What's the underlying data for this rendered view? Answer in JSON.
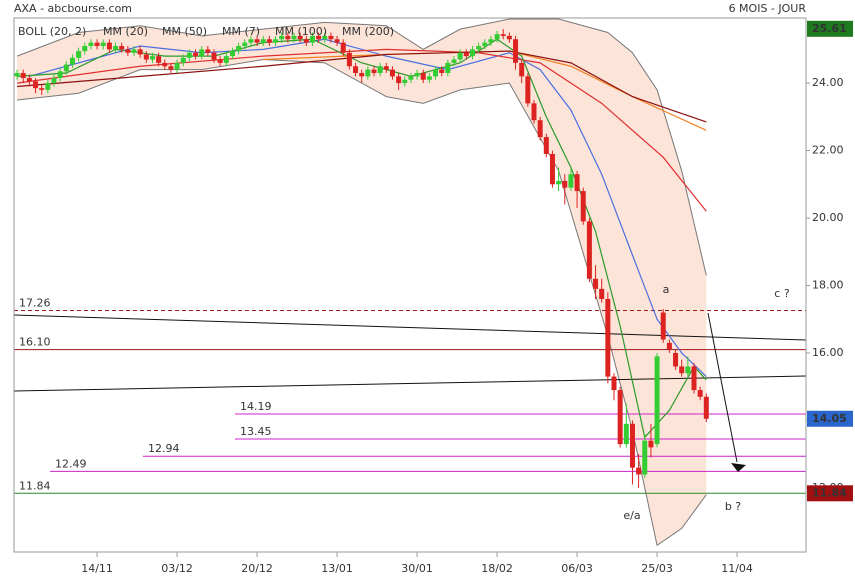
{
  "chart_data": {
    "type": "candlestick",
    "title": "AXA - abcbourse.com",
    "subtitle": "6 MOIS - JOUR",
    "up_color": "#33cc33",
    "down_color": "#dd2222",
    "x": [
      0,
      1,
      2,
      3,
      4,
      5,
      6,
      7,
      8,
      9,
      10,
      11,
      12,
      13,
      14,
      15,
      16,
      17,
      18,
      19,
      20,
      21,
      22,
      23,
      24,
      25,
      26,
      27,
      28,
      29,
      30,
      31,
      32,
      33,
      34,
      35,
      36,
      37,
      38,
      39,
      40,
      41,
      42,
      43,
      44,
      45,
      46,
      47,
      48,
      49,
      50,
      51,
      52,
      53,
      54,
      55,
      56,
      57,
      58,
      59,
      60,
      61,
      62,
      63,
      64,
      65,
      66,
      67,
      68,
      69,
      70,
      71,
      72,
      73,
      74,
      75,
      76,
      77,
      78,
      79,
      80,
      81,
      82,
      83,
      84,
      85,
      86,
      87,
      88,
      89,
      90,
      91,
      92,
      93,
      94,
      95,
      96,
      97,
      98,
      99,
      100,
      101,
      102,
      103,
      104,
      105,
      106,
      107,
      108,
      109,
      110,
      111,
      112
    ],
    "open": [
      24.2,
      24.3,
      24.15,
      24.05,
      23.85,
      23.8,
      24.0,
      24.15,
      24.35,
      24.55,
      24.75,
      24.95,
      25.1,
      25.2,
      25.1,
      25.2,
      25.0,
      25.1,
      25.0,
      24.9,
      25.0,
      24.85,
      24.7,
      24.8,
      24.6,
      24.5,
      24.4,
      24.6,
      24.75,
      24.9,
      24.8,
      25.0,
      24.9,
      24.7,
      24.6,
      24.8,
      24.95,
      25.1,
      25.2,
      25.3,
      25.2,
      25.3,
      25.2,
      25.3,
      25.4,
      25.3,
      25.4,
      25.3,
      25.2,
      25.4,
      25.3,
      25.4,
      25.3,
      25.2,
      24.9,
      24.5,
      24.3,
      24.2,
      24.4,
      24.3,
      24.5,
      24.4,
      24.2,
      24.0,
      24.1,
      24.2,
      24.3,
      24.1,
      24.2,
      24.4,
      24.3,
      24.6,
      24.7,
      24.9,
      24.8,
      25.0,
      25.1,
      25.2,
      25.3,
      25.45,
      25.4,
      25.3,
      24.6,
      24.2,
      23.4,
      22.9,
      22.4,
      21.9,
      21.0,
      21.1,
      20.9,
      21.3,
      20.8,
      19.9,
      18.2,
      17.9,
      17.6,
      15.3,
      14.9,
      13.3,
      13.9,
      12.6,
      12.4,
      13.4,
      13.3,
      17.2,
      16.3,
      16.0,
      15.6,
      15.4,
      15.6,
      14.9,
      14.7
    ],
    "high": [
      24.4,
      24.4,
      24.25,
      24.15,
      23.95,
      24.1,
      24.25,
      24.45,
      24.65,
      24.85,
      25.05,
      25.2,
      25.3,
      25.3,
      25.3,
      25.3,
      25.2,
      25.2,
      25.1,
      25.1,
      25.1,
      24.95,
      24.9,
      24.9,
      24.7,
      24.6,
      24.7,
      24.85,
      25.0,
      25.0,
      25.1,
      25.1,
      25.0,
      24.8,
      24.9,
      25.05,
      25.2,
      25.3,
      25.4,
      25.4,
      25.4,
      25.4,
      25.4,
      25.5,
      25.5,
      25.5,
      25.5,
      25.4,
      25.5,
      25.5,
      25.5,
      25.5,
      25.4,
      25.3,
      25.0,
      24.6,
      24.4,
      24.5,
      24.5,
      24.6,
      24.6,
      24.5,
      24.3,
      24.2,
      24.3,
      24.4,
      24.4,
      24.3,
      24.5,
      24.5,
      24.7,
      24.8,
      25.0,
      25.0,
      25.1,
      25.2,
      25.3,
      25.4,
      25.55,
      25.6,
      25.5,
      25.4,
      24.7,
      24.3,
      23.5,
      23.0,
      22.5,
      22.0,
      21.5,
      21.3,
      21.5,
      21.4,
      20.9,
      20.0,
      18.6,
      18.2,
      17.8,
      15.4,
      15.0,
      14.5,
      14.0,
      13.0,
      13.6,
      13.9,
      16.0,
      17.3,
      16.4,
      16.1,
      15.8,
      15.9,
      15.7,
      15.0,
      14.8
    ],
    "low": [
      24.1,
      24.0,
      23.9,
      23.7,
      23.65,
      23.7,
      23.9,
      24.05,
      24.25,
      24.45,
      24.65,
      24.85,
      25.0,
      25.0,
      25.0,
      24.9,
      24.9,
      24.9,
      24.8,
      24.8,
      24.75,
      24.6,
      24.6,
      24.5,
      24.4,
      24.3,
      24.3,
      24.5,
      24.65,
      24.7,
      24.7,
      24.8,
      24.6,
      24.5,
      24.5,
      24.7,
      24.85,
      25.0,
      25.1,
      25.1,
      25.1,
      25.1,
      25.1,
      25.2,
      25.2,
      25.2,
      25.2,
      25.1,
      25.1,
      25.2,
      25.2,
      25.2,
      25.1,
      24.8,
      24.4,
      24.2,
      24.0,
      24.1,
      24.2,
      24.2,
      24.3,
      24.1,
      23.8,
      23.9,
      24.0,
      24.1,
      24.0,
      24.0,
      24.1,
      24.2,
      24.2,
      24.5,
      24.6,
      24.7,
      24.7,
      24.9,
      25.0,
      25.1,
      25.2,
      25.3,
      25.2,
      24.4,
      24.0,
      23.3,
      22.8,
      22.3,
      21.8,
      20.9,
      20.8,
      20.4,
      20.8,
      20.3,
      19.8,
      18.1,
      17.6,
      17.5,
      15.1,
      14.6,
      13.2,
      13.2,
      12.1,
      12.0,
      12.3,
      12.9,
      13.2,
      16.3,
      16.0,
      15.5,
      15.3,
      15.3,
      14.8,
      14.6,
      13.95
    ],
    "close": [
      24.3,
      24.15,
      24.05,
      23.85,
      23.8,
      24.0,
      24.15,
      24.35,
      24.55,
      24.75,
      24.95,
      25.1,
      25.2,
      25.1,
      25.2,
      25.0,
      25.1,
      25.0,
      24.9,
      25.0,
      24.85,
      24.7,
      24.8,
      24.6,
      24.5,
      24.4,
      24.6,
      24.75,
      24.9,
      24.8,
      25.0,
      24.9,
      24.7,
      24.6,
      24.8,
      24.95,
      25.1,
      25.2,
      25.3,
      25.2,
      25.3,
      25.2,
      25.3,
      25.4,
      25.3,
      25.4,
      25.3,
      25.2,
      25.4,
      25.3,
      25.4,
      25.3,
      25.2,
      24.9,
      24.5,
      24.3,
      24.2,
      24.4,
      24.3,
      24.5,
      24.4,
      24.2,
      24.0,
      24.1,
      24.2,
      24.3,
      24.1,
      24.2,
      24.4,
      24.3,
      24.6,
      24.7,
      24.9,
      24.8,
      25.0,
      25.1,
      25.2,
      25.3,
      25.45,
      25.4,
      25.3,
      24.6,
      24.2,
      23.4,
      22.9,
      22.4,
      21.9,
      21.0,
      21.1,
      20.9,
      21.3,
      20.8,
      19.9,
      18.2,
      17.9,
      17.6,
      15.3,
      14.9,
      13.3,
      13.9,
      12.6,
      12.4,
      13.4,
      13.2,
      15.9,
      16.4,
      16.1,
      15.6,
      15.4,
      15.6,
      14.9,
      14.7,
      14.05
    ],
    "bollinger": {
      "name": "BOLL (20, 2)",
      "color": "#777777",
      "fill": "#fde4d8",
      "x": [
        0,
        10,
        20,
        30,
        40,
        50,
        60,
        66,
        72,
        80,
        88,
        96,
        100,
        104,
        108,
        112
      ],
      "upper": [
        24.8,
        25.5,
        25.7,
        25.4,
        25.6,
        25.8,
        25.7,
        25.0,
        25.6,
        25.9,
        25.9,
        25.5,
        24.9,
        23.8,
        21.4,
        18.3
      ],
      "lower": [
        23.5,
        23.7,
        24.4,
        24.4,
        24.7,
        24.6,
        23.6,
        23.4,
        23.8,
        24.0,
        21.4,
        16.5,
        13.7,
        10.3,
        10.8,
        11.8
      ]
    },
    "series": [
      {
        "name": "MM (20)",
        "color": "#4a6fe0",
        "x": [
          2,
          10,
          20,
          30,
          40,
          50,
          60,
          70,
          80,
          85,
          90,
          95,
          100,
          104,
          108,
          112
        ],
        "values": [
          24.2,
          24.6,
          25.1,
          24.9,
          25.0,
          25.3,
          24.8,
          24.4,
          24.9,
          24.4,
          23.2,
          21.3,
          18.9,
          17.0,
          16.0,
          15.3
        ]
      },
      {
        "name": "MM (50)",
        "color": "#e03030",
        "x": [
          0,
          20,
          40,
          60,
          75,
          85,
          95,
          105,
          112
        ],
        "values": [
          24.0,
          24.5,
          24.8,
          25.0,
          24.9,
          24.6,
          23.4,
          21.8,
          20.2
        ]
      },
      {
        "name": "MM (7)",
        "color": "#2a9a2a",
        "x": [
          0,
          8,
          16,
          24,
          32,
          40,
          48,
          56,
          64,
          72,
          78,
          82,
          86,
          90,
          94,
          98,
          102,
          106,
          110,
          112
        ],
        "values": [
          24.2,
          24.3,
          25.0,
          24.8,
          24.8,
          25.2,
          25.3,
          24.6,
          24.2,
          24.6,
          25.3,
          24.8,
          23.0,
          21.5,
          19.6,
          16.8,
          13.5,
          14.3,
          15.6,
          15.2
        ]
      },
      {
        "name": "MM (100)",
        "color": "#f08020",
        "x": [
          40,
          60,
          80,
          90,
          100,
          112
        ],
        "values": [
          24.7,
          24.85,
          24.95,
          24.5,
          23.6,
          22.6
        ]
      },
      {
        "name": "MM (200)",
        "color": "#8b1010",
        "x": [
          0,
          20,
          40,
          60,
          80,
          90,
          100,
          112
        ],
        "values": [
          23.9,
          24.2,
          24.5,
          24.85,
          24.95,
          24.6,
          23.6,
          22.85
        ]
      }
    ],
    "levels": [
      {
        "value": 17.26,
        "label": "17.26",
        "color": "#a01818",
        "dashed": true
      },
      {
        "value": 16.1,
        "label": "16.10",
        "color": "#a01818",
        "dashed": false
      },
      {
        "value": 14.19,
        "label": "14.19",
        "color": "#cc22cc",
        "dashed": false
      },
      {
        "value": 13.45,
        "label": "13.45",
        "color": "#cc22cc",
        "dashed": false
      },
      {
        "value": 12.94,
        "label": "12.94",
        "color": "#cc22cc",
        "dashed": false
      },
      {
        "value": 12.49,
        "label": "12.49",
        "color": "#cc22cc",
        "dashed": false
      },
      {
        "value": 11.84,
        "label": "11.84",
        "color": "#2a8a2a",
        "dashed": false
      }
    ],
    "price_labels": [
      {
        "value": 25.61,
        "label": "25.61",
        "color": "#1e7a1e"
      },
      {
        "value": 14.05,
        "label": "14.05",
        "color": "#2a66cc"
      },
      {
        "value": 11.84,
        "label": "11.84",
        "color": "#a01010"
      }
    ],
    "annotations": [
      {
        "text": "a",
        "color": "#33338a"
      },
      {
        "text": "c ?",
        "color": "#33338a"
      },
      {
        "text": "e/a",
        "color": "#aa1111"
      },
      {
        "text": "b ?",
        "color": "#33338a"
      }
    ],
    "xlim": [
      -0.5,
      128.2
    ],
    "xticks": [
      {
        "value": 13,
        "label": "14/11"
      },
      {
        "value": 26,
        "label": "03/12"
      },
      {
        "value": 39,
        "label": "20/12"
      },
      {
        "value": 52,
        "label": "13/01"
      },
      {
        "value": 65,
        "label": "30/01"
      },
      {
        "value": 78,
        "label": "18/02"
      },
      {
        "value": 91,
        "label": "06/03"
      },
      {
        "value": 104,
        "label": "25/03"
      },
      {
        "value": 117,
        "label": "11/04"
      }
    ],
    "ylim": [
      10.1,
      25.93
    ],
    "yticks": [
      {
        "value": 12,
        "label": "12.00"
      },
      {
        "value": 14,
        "label": "14.00"
      },
      {
        "value": 16,
        "label": "16.00"
      },
      {
        "value": 18,
        "label": "18.00"
      },
      {
        "value": 20,
        "label": "20.00"
      },
      {
        "value": 22,
        "label": "22.00"
      },
      {
        "value": 24,
        "label": "24.00"
      }
    ]
  }
}
